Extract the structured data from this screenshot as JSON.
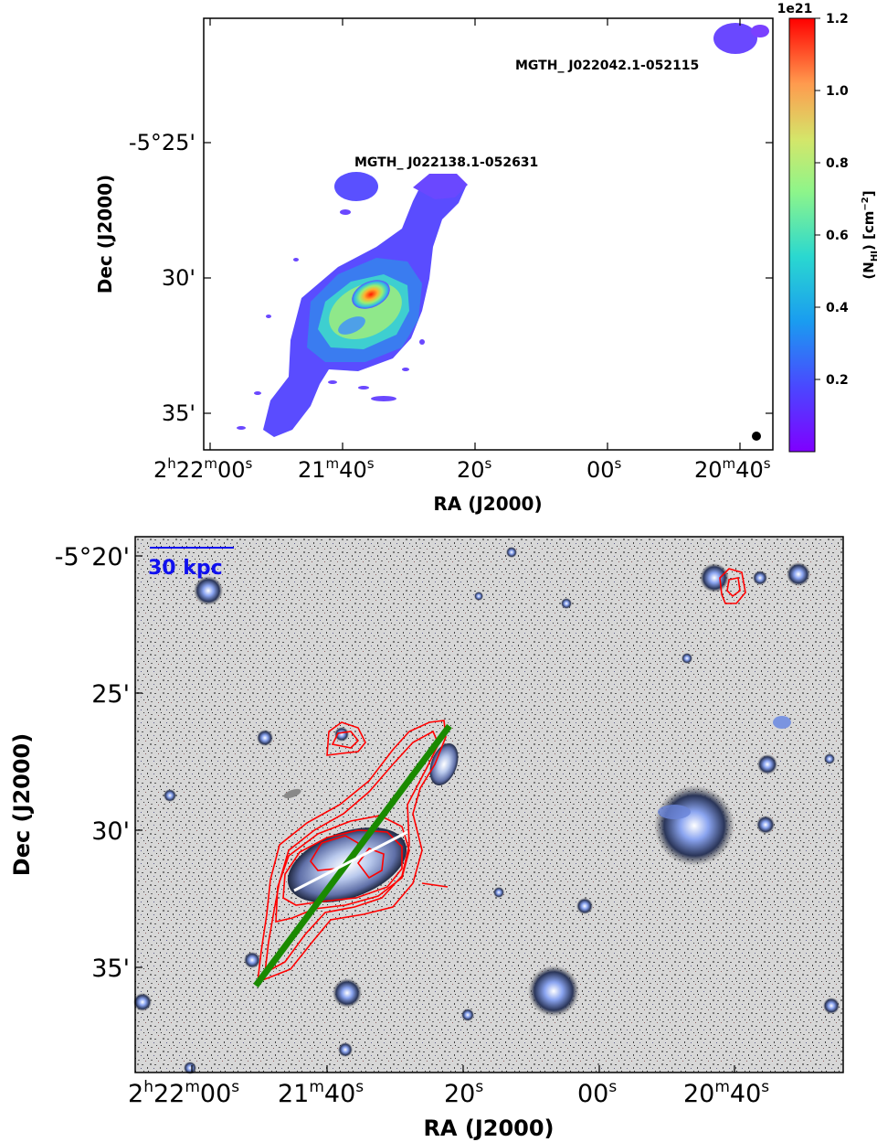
{
  "top_panel": {
    "x_axis_label": "RA (J2000)",
    "y_axis_label": "Dec (J2000)",
    "x_ticks": [
      {
        "main": "2",
        "sup1": "h",
        "mid": "22",
        "sup2": "m",
        "end": "00",
        "sup3": "s"
      },
      {
        "main": "21",
        "sup1": "m",
        "mid": "40",
        "sup2": "s",
        "end": "",
        "sup3": ""
      },
      {
        "main": "20",
        "sup1": "s",
        "mid": "",
        "sup2": "",
        "end": "",
        "sup3": ""
      },
      {
        "main": "00",
        "sup1": "s",
        "mid": "",
        "sup2": "",
        "end": "",
        "sup3": ""
      },
      {
        "main": "20",
        "sup1": "m",
        "mid": "40",
        "sup2": "s",
        "end": "",
        "sup3": ""
      }
    ],
    "y_ticks": [
      "-5°25'",
      "30'",
      "35'"
    ],
    "source_labels": [
      "MGTH_ J022042.1-052115",
      "MGTH_ J022138.1-052631"
    ],
    "colorbar": {
      "label": "(N",
      "label_sub": "HI",
      "label_end": ") [cm",
      "label_sup": "−2",
      "label_close": "]",
      "offset_text": "1e21",
      "ticks": [
        "0.2",
        "0.4",
        "0.6",
        "0.8",
        "1.0",
        "1.2"
      ],
      "colormap": "rainbow",
      "range": [
        0.0,
        1.2
      ]
    },
    "beam_marker": "filled black circle"
  },
  "bottom_panel": {
    "x_axis_label": "RA (J2000)",
    "y_axis_label": "Dec (J2000)",
    "x_ticks": [
      {
        "main": "2",
        "sup1": "h",
        "mid": "22",
        "sup2": "m",
        "end": "00",
        "sup3": "s"
      },
      {
        "main": "21",
        "sup1": "m",
        "mid": "40",
        "sup2": "s",
        "end": "",
        "sup3": ""
      },
      {
        "main": "20",
        "sup1": "s",
        "mid": "",
        "sup2": "",
        "end": "",
        "sup3": ""
      },
      {
        "main": "00",
        "sup1": "s",
        "mid": "",
        "sup2": "",
        "end": "",
        "sup3": ""
      },
      {
        "main": "20",
        "sup1": "m",
        "mid": "40",
        "sup2": "s",
        "end": "",
        "sup3": ""
      }
    ],
    "y_ticks": [
      "-5°20'",
      "25'",
      "30'",
      "35'"
    ],
    "scale_bar_label": "30 kpc",
    "colors": {
      "contours": "#ff0000",
      "major_axis_line": "#1a8a00",
      "minor_axis_line": "#ffffff",
      "scale_bar": "#1010ee"
    }
  }
}
